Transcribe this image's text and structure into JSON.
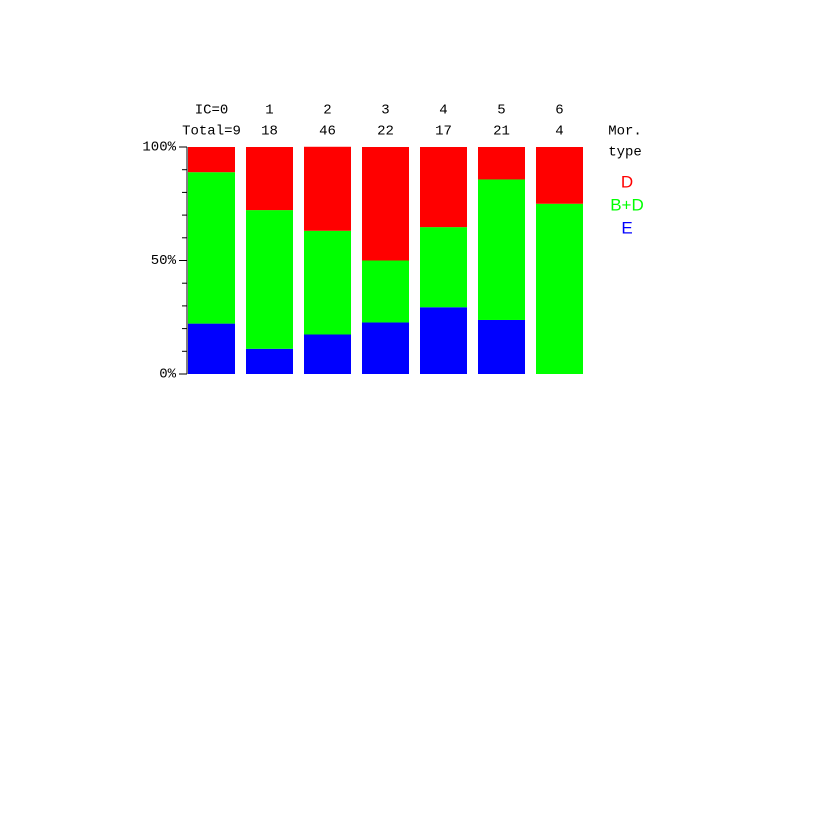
{
  "chart_data": {
    "type": "stacked_bar_percent",
    "categories": [
      "IC=0",
      "1",
      "2",
      "3",
      "4",
      "5",
      "6"
    ],
    "totals": [
      "Total=9",
      "18",
      "46",
      "22",
      "17",
      "21",
      "4"
    ],
    "legend_title": [
      "Mor.",
      "type"
    ],
    "series": [
      {
        "name": "E",
        "color": "#0000ff",
        "values": [
          22.2,
          11.1,
          17.4,
          22.7,
          29.4,
          23.8,
          0
        ]
      },
      {
        "name": "B+D",
        "color": "#00ff00",
        "values": [
          66.7,
          61.1,
          45.7,
          27.3,
          35.3,
          61.9,
          75
        ]
      },
      {
        "name": "D",
        "color": "#ff0000",
        "values": [
          11.1,
          27.8,
          37.0,
          50.0,
          35.3,
          14.3,
          25
        ]
      }
    ],
    "ylim": [
      0,
      100
    ],
    "yticks": [
      {
        "value": 0,
        "label": "0%"
      },
      {
        "value": 50,
        "label": "50%"
      },
      {
        "value": 100,
        "label": "100%"
      }
    ],
    "minor_yticks": [
      10,
      20,
      30,
      40,
      60,
      70,
      80,
      90
    ]
  }
}
